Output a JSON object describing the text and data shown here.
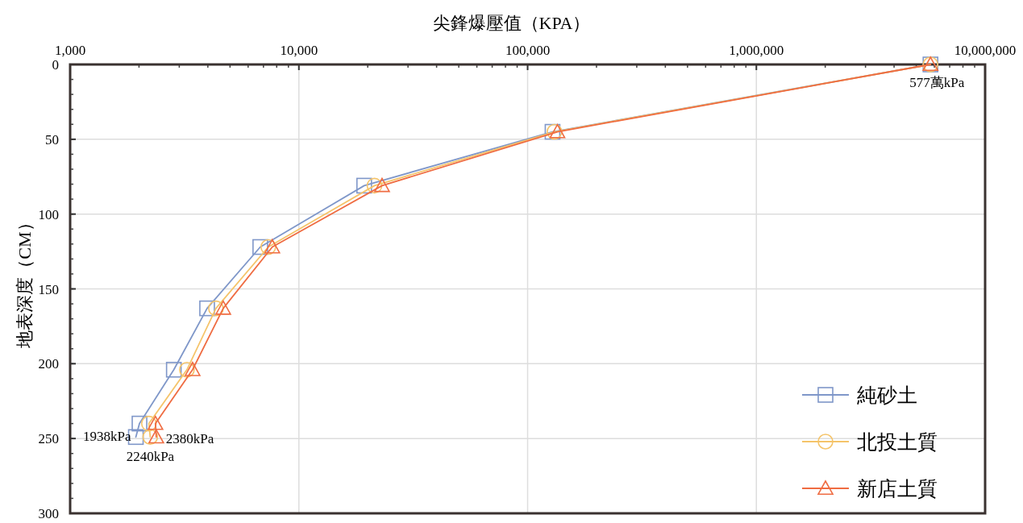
{
  "chart_data": {
    "type": "line",
    "xlabel": "尖鋒爆壓值（KPA）",
    "ylabel": "地表深度（CM）",
    "log": "x",
    "xlim": [
      1000,
      10000000
    ],
    "xticks": [
      {
        "value": 1000,
        "label": "1,000"
      },
      {
        "value": 10000,
        "label": "10,000"
      },
      {
        "value": 100000,
        "label": "100,000"
      },
      {
        "value": 1000000,
        "label": "1,000,000"
      },
      {
        "value": 10000000,
        "label": "10,000,000"
      }
    ],
    "ylim": [
      300,
      0
    ],
    "yticks": [
      0,
      50,
      100,
      150,
      200,
      250,
      300
    ],
    "grid": true,
    "legend": "bottom right",
    "line_style": "solid",
    "series": [
      {
        "name": "純砂土",
        "color": "#7f97c9",
        "marker": "square",
        "x": [
          5770000,
          128500,
          19300,
          6780,
          3970,
          2840,
          2010,
          1938
        ],
        "values": [
          0,
          45,
          81,
          122,
          163,
          204,
          240,
          249
        ]
      },
      {
        "name": "北投土質",
        "color": "#f5c46a",
        "marker": "circle",
        "x": [
          5770000,
          131000,
          21400,
          7350,
          4340,
          3240,
          2210,
          2240
        ],
        "values": [
          0,
          45,
          81,
          122,
          163,
          204,
          240,
          249
        ]
      },
      {
        "name": "新店土質",
        "color": "#ef6c42",
        "marker": "triangle",
        "x": [
          5770000,
          135000,
          23100,
          7650,
          4670,
          3430,
          2360,
          2380
        ],
        "values": [
          0,
          45,
          81,
          122,
          163,
          204,
          240,
          249
        ]
      }
    ],
    "annotations": [
      {
        "text": "577萬kPa",
        "x": 5770000,
        "y": 0
      },
      {
        "text": "1938kPa",
        "x": 1938,
        "y": 249
      },
      {
        "text": "2240kPa",
        "x": 2240,
        "y": 249
      },
      {
        "text": "2380kPa",
        "x": 2380,
        "y": 249
      }
    ]
  }
}
